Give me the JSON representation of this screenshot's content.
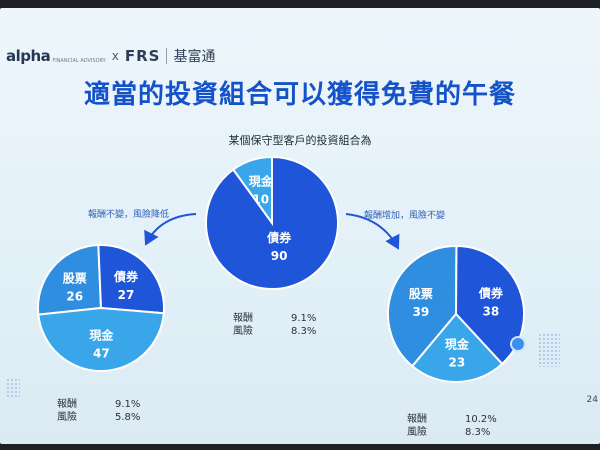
{
  "brand": {
    "alpha": "alpha",
    "alpha_sub": "FINANCIAL ADVISORY",
    "x": "x",
    "frs": "FRS",
    "cn": "基富通"
  },
  "slide": {
    "title": "適當的投資組合可以獲得免費的午餐",
    "subtitle": "某個保守型客戶的投資組合為",
    "note_left": "報酬不變，風險降低",
    "note_right": "報酬增加，風險不變",
    "page_number": "24"
  },
  "stats": {
    "return_label": "報酬",
    "risk_label": "風險",
    "center": {
      "return": "9.1%",
      "risk": "8.3%"
    },
    "left": {
      "return": "9.1%",
      "risk": "5.8%"
    },
    "right": {
      "return": "10.2%",
      "risk": "8.3%"
    }
  },
  "colors": {
    "bond": "#1f55d8",
    "stock": "#2f8ee0",
    "cash": "#3aa6ea",
    "accent": "#1452c9"
  },
  "chart_data": [
    {
      "type": "pie",
      "title": "",
      "categories": [
        "現金",
        "債券"
      ],
      "values": [
        10,
        90
      ]
    },
    {
      "type": "pie",
      "title": "",
      "categories": [
        "股票",
        "債券",
        "現金"
      ],
      "values": [
        26,
        27,
        47
      ]
    },
    {
      "type": "pie",
      "title": "",
      "categories": [
        "股票",
        "債券",
        "現金"
      ],
      "values": [
        39,
        38,
        23
      ]
    }
  ]
}
